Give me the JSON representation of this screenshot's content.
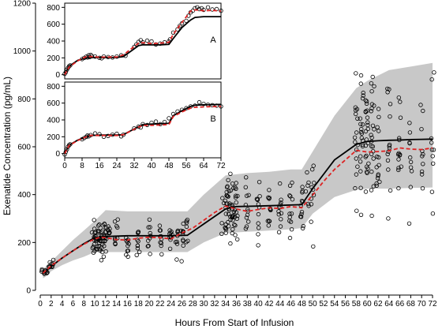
{
  "chart_data": {
    "type": "scatter",
    "xlabel": "Hours From Start of Infusion",
    "ylabel": "Exenatide Concentration (pg/mL)",
    "xlim": [
      0,
      72
    ],
    "ylim": [
      0,
      1200
    ],
    "x_ticks": [
      0,
      2,
      4,
      6,
      8,
      10,
      12,
      14,
      16,
      18,
      20,
      22,
      24,
      26,
      28,
      30,
      32,
      34,
      36,
      38,
      40,
      42,
      44,
      46,
      48,
      50,
      52,
      54,
      56,
      58,
      60,
      62,
      64,
      66,
      68,
      70,
      72
    ],
    "y_ticks": [
      0,
      200,
      400,
      600,
      800,
      1000,
      1200
    ],
    "x_tick_labels": [
      "0",
      "2",
      "4",
      "6",
      "8",
      "10",
      "12",
      "14",
      "16",
      "18",
      "20",
      "22",
      "24",
      "26",
      "28",
      "30",
      "32",
      "34",
      "36",
      "38",
      "40",
      "42",
      "44",
      "46",
      "48",
      "50",
      "52",
      "54",
      "56",
      "58",
      "60",
      "62",
      "64",
      "66",
      "68",
      "70",
      "72"
    ],
    "y_tick_labels": [
      "0",
      "200",
      "400",
      "600",
      "800",
      "1000",
      "1200"
    ],
    "grid": false,
    "band_90pi": {
      "x": [
        0.5,
        1.5,
        2,
        4,
        6,
        8,
        10,
        12,
        16,
        20,
        24,
        27,
        30,
        34,
        38,
        42,
        46,
        48,
        50,
        54,
        58,
        60,
        64,
        68,
        72
      ],
      "lower": [
        50,
        65,
        80,
        105,
        125,
        140,
        160,
        160,
        160,
        160,
        160,
        160,
        200,
        240,
        245,
        250,
        255,
        260,
        320,
        390,
        420,
        425,
        425,
        428,
        430
      ],
      "upper": [
        90,
        110,
        120,
        165,
        210,
        250,
        290,
        335,
        330,
        330,
        330,
        330,
        400,
        480,
        490,
        495,
        505,
        505,
        580,
        730,
        845,
        875,
        920,
        935,
        950
      ]
    },
    "series": [
      {
        "kind": "median-predicted",
        "x": [
          0.5,
          2,
          4,
          6,
          8,
          10,
          12,
          16,
          20,
          24,
          27,
          34,
          36,
          40,
          44,
          48,
          50,
          54,
          58,
          60,
          62,
          64,
          66,
          68,
          70,
          72
        ],
        "y": [
          70,
          100,
          135,
          165,
          195,
          220,
          225,
          228,
          228,
          228,
          230,
          340,
          350,
          352,
          355,
          358,
          425,
          545,
          610,
          622,
          625,
          627,
          628,
          630,
          631,
          632
        ]
      },
      {
        "kind": "median-observed",
        "x": [
          0.5,
          2,
          4,
          6,
          8,
          10,
          11,
          12,
          14,
          16,
          18,
          20,
          22,
          24,
          26,
          28,
          32,
          34,
          36,
          38,
          40,
          42,
          44,
          46,
          48,
          50,
          52,
          54,
          56,
          58,
          60,
          62,
          64,
          66,
          68,
          70,
          72
        ],
        "y": [
          72,
          103,
          135,
          165,
          193,
          215,
          222,
          220,
          212,
          210,
          218,
          222,
          220,
          215,
          240,
          260,
          325,
          352,
          340,
          330,
          338,
          345,
          342,
          350,
          345,
          398,
          455,
          505,
          545,
          585,
          578,
          580,
          583,
          595,
          590,
          588,
          595
        ]
      }
    ],
    "insets": [
      {
        "label": "A",
        "xlim": [
          0,
          72
        ],
        "ylim": [
          -50,
          850
        ],
        "y_ticks": [
          0,
          200,
          400,
          600,
          800
        ],
        "y_tick_labels": [
          "0",
          "200",
          "400",
          "600",
          "800"
        ],
        "x_tick_labels": [],
        "pred": {
          "x": [
            0,
            2,
            6,
            10,
            12,
            16,
            20,
            24,
            27,
            34,
            36,
            40,
            44,
            48,
            50,
            54,
            58,
            60,
            64,
            68,
            72
          ],
          "y": [
            0,
            100,
            170,
            200,
            205,
            205,
            205,
            205,
            215,
            345,
            355,
            355,
            355,
            360,
            430,
            560,
            650,
            680,
            690,
            690,
            690
          ]
        },
        "obs": {
          "x": [
            0,
            2,
            6,
            10,
            12,
            16,
            20,
            24,
            27,
            34,
            36,
            40,
            44,
            48,
            50,
            54,
            58,
            60,
            64,
            68,
            72
          ],
          "y": [
            0,
            90,
            165,
            215,
            215,
            208,
            210,
            210,
            235,
            375,
            380,
            370,
            375,
            385,
            480,
            620,
            755,
            770,
            760,
            765,
            755
          ]
        },
        "points": {
          "x": [
            0,
            0.5,
            1,
            1.5,
            2,
            2.5,
            8,
            9,
            10,
            10.5,
            11,
            11.5,
            12,
            12.5,
            14,
            16,
            17,
            18,
            20,
            22,
            24,
            26,
            28,
            32,
            33,
            34,
            35,
            36,
            38,
            40,
            42,
            44,
            46,
            48,
            48.5,
            50,
            52,
            53,
            54,
            56,
            57,
            58,
            59,
            60,
            61,
            62,
            63,
            64,
            66,
            68,
            70,
            72
          ],
          "y": [
            10,
            30,
            60,
            80,
            100,
            110,
            185,
            200,
            215,
            205,
            230,
            210,
            235,
            220,
            215,
            200,
            195,
            215,
            210,
            205,
            215,
            230,
            225,
            330,
            360,
            390,
            410,
            385,
            405,
            395,
            360,
            370,
            385,
            395,
            420,
            500,
            540,
            580,
            610,
            640,
            700,
            740,
            760,
            790,
            800,
            780,
            790,
            770,
            800,
            775,
            780,
            760
          ]
        }
      },
      {
        "label": "B",
        "xlim": [
          0,
          72
        ],
        "ylim": [
          -50,
          850
        ],
        "y_ticks": [
          0,
          200,
          400,
          600,
          800
        ],
        "y_tick_labels": [
          "0",
          "200",
          "400",
          "600",
          "800"
        ],
        "x_ticks": [
          0,
          8,
          16,
          24,
          32,
          40,
          48,
          56,
          64,
          72
        ],
        "x_tick_labels": [
          "0",
          "8",
          "16",
          "24",
          "32",
          "40",
          "48",
          "56",
          "64",
          "72"
        ],
        "pred": {
          "x": [
            0,
            2,
            6,
            10,
            12,
            16,
            20,
            24,
            27,
            34,
            36,
            40,
            44,
            48,
            50,
            54,
            58,
            60,
            64,
            68,
            72
          ],
          "y": [
            0,
            100,
            160,
            200,
            215,
            220,
            220,
            220,
            225,
            320,
            345,
            350,
            355,
            360,
            450,
            510,
            560,
            575,
            580,
            582,
            585
          ]
        },
        "obs": {
          "x": [
            0,
            2,
            6,
            10,
            12,
            16,
            20,
            24,
            27,
            34,
            36,
            40,
            44,
            48,
            50,
            54,
            58,
            60,
            64,
            68,
            72
          ],
          "y": [
            0,
            95,
            155,
            200,
            215,
            215,
            215,
            215,
            225,
            315,
            335,
            335,
            340,
            345,
            440,
            495,
            540,
            550,
            555,
            558,
            560
          ]
        },
        "points": {
          "x": [
            0,
            0.5,
            1,
            1.5,
            2,
            2.5,
            8,
            9,
            10,
            10.5,
            11,
            12,
            14,
            16,
            18,
            20,
            22,
            24,
            26,
            27,
            32,
            34,
            35,
            36,
            38,
            40,
            42,
            44,
            46,
            48,
            50,
            52,
            54,
            56,
            58,
            60,
            62,
            64,
            66,
            68,
            70,
            72
          ],
          "y": [
            -10,
            20,
            50,
            80,
            100,
            110,
            170,
            185,
            200,
            215,
            205,
            220,
            240,
            230,
            200,
            210,
            225,
            235,
            205,
            225,
            300,
            320,
            310,
            350,
            340,
            365,
            380,
            350,
            375,
            420,
            470,
            500,
            520,
            540,
            560,
            570,
            610,
            590,
            580,
            575,
            570,
            560
          ]
        }
      }
    ],
    "colors": {
      "band": "#c8c8c8",
      "pred_line": "#000000",
      "obs_line": "#dd2222",
      "points": "#000000"
    }
  }
}
